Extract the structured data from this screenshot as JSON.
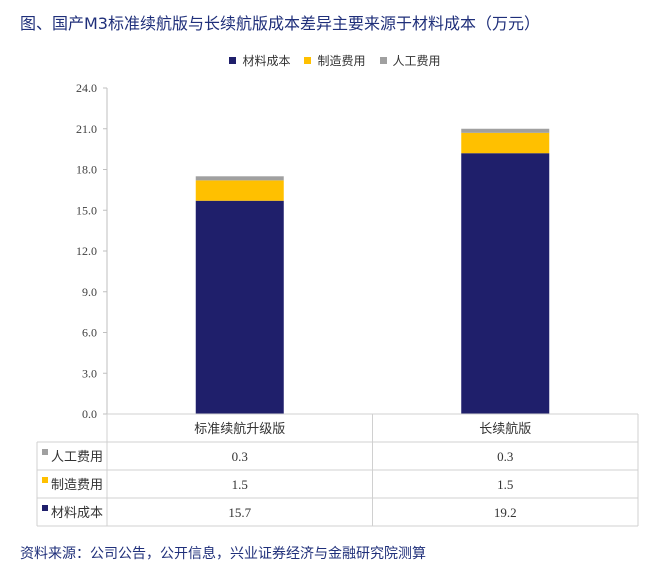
{
  "title": "图、国产M3标准续航版与长续航版成本差异主要来源于材料成本（万元）",
  "source": "资料来源：公司公告，公开信息，兴业证券经济与金融研究院测算",
  "chart_data": {
    "type": "bar",
    "stacked": true,
    "categories": [
      "标准续航升级版",
      "长续航版"
    ],
    "series": [
      {
        "name": "材料成本",
        "values": [
          15.7,
          19.2
        ],
        "color": "#1f1f6b"
      },
      {
        "name": "制造费用",
        "values": [
          1.5,
          1.5
        ],
        "color": "#ffc000"
      },
      {
        "name": "人工费用",
        "values": [
          0.3,
          0.3
        ],
        "color": "#a0a0a0"
      }
    ],
    "table_display": [
      {
        "name": "人工费用",
        "values": [
          "0.3",
          "0.3"
        ]
      },
      {
        "name": "制造费用",
        "values": [
          "1.5",
          "1.5"
        ]
      },
      {
        "name": "材料成本",
        "values": [
          "15.7",
          "19.2"
        ]
      }
    ],
    "ylim": [
      0,
      24
    ],
    "yticks": [
      "0.0",
      "3.0",
      "6.0",
      "9.0",
      "12.0",
      "15.0",
      "18.0",
      "21.0",
      "24.0"
    ],
    "legend_position": "top",
    "grid": false,
    "data_table": true
  }
}
